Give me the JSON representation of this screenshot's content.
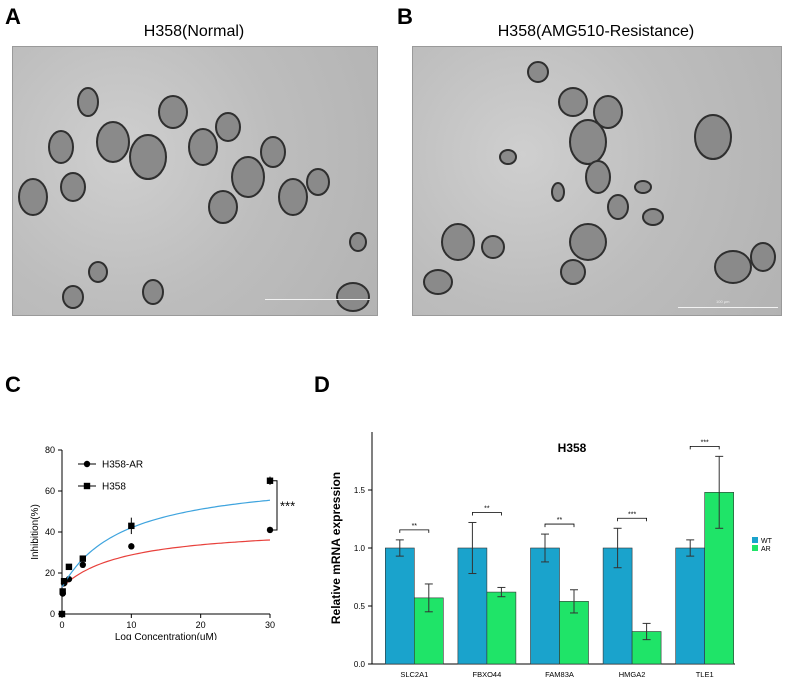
{
  "panels": {
    "a": {
      "letter": "A",
      "title": "H358(Normal)"
    },
    "b": {
      "letter": "B",
      "title": "H358(AMG510-Resistance)",
      "scale_label": "100 μm"
    },
    "c": {
      "letter": "C"
    },
    "d": {
      "letter": "D"
    }
  },
  "chart_data": [
    {
      "type": "scatter",
      "panel": "C",
      "xlabel": "Log Concentration(uM)",
      "ylabel": "Inhibition(%)",
      "xlim": [
        0,
        30
      ],
      "ylim": [
        0,
        80
      ],
      "xticks": [
        "0",
        "10",
        "20",
        "30"
      ],
      "yticks": [
        "0",
        "20",
        "40",
        "60",
        "80"
      ],
      "legend_position": "top-left",
      "series": [
        {
          "name": "H358-AR",
          "marker": "circle",
          "color": "#e8413c",
          "x": [
            0,
            0.1,
            0.3,
            1,
            3,
            10,
            30
          ],
          "y": [
            0,
            10,
            15,
            17,
            24,
            33,
            41
          ],
          "err": [
            0,
            1,
            1,
            1,
            1,
            1.5,
            1.5
          ]
        },
        {
          "name": "H358",
          "marker": "square",
          "color": "#3fa4de",
          "x": [
            0,
            0.1,
            0.3,
            1,
            3,
            10,
            30
          ],
          "y": [
            0,
            11,
            16,
            23,
            27,
            43,
            65
          ],
          "err": [
            0,
            1,
            1,
            1,
            1,
            4,
            2
          ]
        }
      ],
      "annotation": "***",
      "grid": false
    },
    {
      "type": "bar",
      "panel": "D",
      "title": "H358",
      "ylabel": "Relative mRNA expression",
      "ylim": [
        0,
        2.0
      ],
      "yticks": [
        "0.0",
        "0.5",
        "1.0",
        "1.5"
      ],
      "categories": [
        "SLC2A1",
        "FBXO44",
        "FAM83A",
        "HMGA2",
        "TLE1"
      ],
      "legend_position": "right",
      "series": [
        {
          "name": "WT",
          "color": "#1aa3cc",
          "values": [
            1.0,
            1.0,
            1.0,
            1.0,
            1.0
          ],
          "err": [
            0.07,
            0.22,
            0.12,
            0.17,
            0.07
          ]
        },
        {
          "name": "AR",
          "color": "#1fe468",
          "values": [
            0.57,
            0.62,
            0.54,
            0.28,
            1.48
          ],
          "err": [
            0.12,
            0.04,
            0.1,
            0.07,
            0.31
          ]
        }
      ],
      "significance": [
        "**",
        "**",
        "**",
        "***",
        "***"
      ]
    }
  ]
}
